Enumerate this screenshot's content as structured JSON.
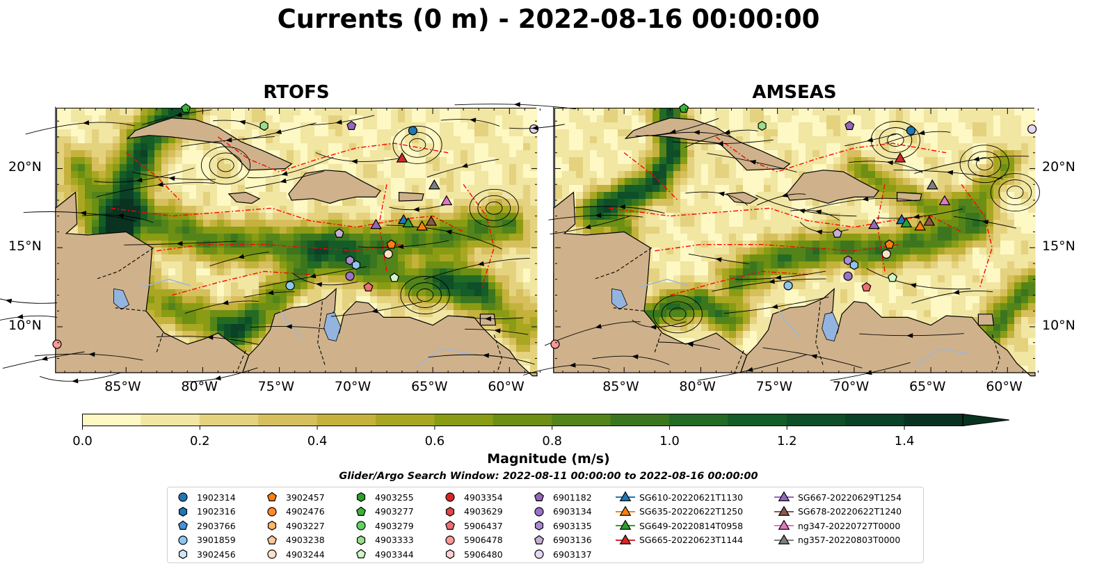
{
  "title": "Currents (0 m) - 2022-08-16 00:00:00",
  "panels": [
    {
      "name": "RTOFS"
    },
    {
      "name": "AMSEAS"
    }
  ],
  "map": {
    "lon_range": [
      -89.5,
      -58.2
    ],
    "lat_range": [
      7.1,
      23.8
    ],
    "lon_ticks": [
      "85°W",
      "80°W",
      "75°W",
      "70°W",
      "65°W",
      "60°W"
    ],
    "lat_ticks": [
      "20°N",
      "15°N",
      "10°N"
    ],
    "colors": {
      "land": "#cfb28b",
      "lake": "#93b4df",
      "eez": "#ff0000",
      "streamline": "#000000"
    }
  },
  "colorbar": {
    "label": "Magnitude (m/s)",
    "ticks": [
      "0.0",
      "0.2",
      "0.4",
      "0.6",
      "0.8",
      "1.0",
      "1.2",
      "1.4"
    ],
    "colors": [
      "#fdf8c4",
      "#f1e6a2",
      "#e4d27f",
      "#d7bf5e",
      "#c4b23d",
      "#a9a722",
      "#8a9c14",
      "#6c8f14",
      "#52841a",
      "#3b761e",
      "#236a24",
      "#145c28",
      "#0e4e28",
      "#0b4126",
      "#093320"
    ],
    "extend": "max"
  },
  "search_window": "Glider/Argo Search Window: 2022-08-11 00:00:00 to 2022-08-16 00:00:00",
  "legend": [
    {
      "label": "1902314",
      "marker": "circle",
      "color": "#1f77b4"
    },
    {
      "label": "1902316",
      "marker": "hexagon",
      "color": "#1f77b4"
    },
    {
      "label": "2903766",
      "marker": "pentagon",
      "color": "#4a90d9"
    },
    {
      "label": "3901859",
      "marker": "circle",
      "color": "#8ec6ee"
    },
    {
      "label": "3902456",
      "marker": "hexagon",
      "color": "#cfe6f7"
    },
    {
      "label": "3902457",
      "marker": "pentagon",
      "color": "#ff7f0e"
    },
    {
      "label": "4902476",
      "marker": "circle",
      "color": "#ff8a2a"
    },
    {
      "label": "4903227",
      "marker": "hexagon",
      "color": "#ffb66b"
    },
    {
      "label": "4903238",
      "marker": "pentagon",
      "color": "#ffc99a"
    },
    {
      "label": "4903244",
      "marker": "circle",
      "color": "#ffe2c6"
    },
    {
      "label": "4903255",
      "marker": "hexagon",
      "color": "#2ca02c"
    },
    {
      "label": "4903277",
      "marker": "pentagon",
      "color": "#3bb33b"
    },
    {
      "label": "4903279",
      "marker": "circle",
      "color": "#5fd35f"
    },
    {
      "label": "4903333",
      "marker": "hexagon",
      "color": "#98df8a"
    },
    {
      "label": "4903344",
      "marker": "pentagon",
      "color": "#d0f5c8"
    },
    {
      "label": "4903354",
      "marker": "circle",
      "color": "#d62728"
    },
    {
      "label": "4903629",
      "marker": "hexagon",
      "color": "#e0474a"
    },
    {
      "label": "5906437",
      "marker": "pentagon",
      "color": "#ee6e73"
    },
    {
      "label": "5906478",
      "marker": "circle",
      "color": "#ff9896"
    },
    {
      "label": "5906480",
      "marker": "hexagon",
      "color": "#ffd0cf"
    },
    {
      "label": "6901182",
      "marker": "pentagon",
      "color": "#9467bd"
    },
    {
      "label": "6903134",
      "marker": "circle",
      "color": "#9a72c6"
    },
    {
      "label": "6903135",
      "marker": "hexagon",
      "color": "#a98ad3"
    },
    {
      "label": "6903136",
      "marker": "pentagon",
      "color": "#c5b0d5"
    },
    {
      "label": "6903137",
      "marker": "circle",
      "color": "#e5d6f5"
    },
    {
      "label": "SG610-20220621T1130",
      "marker": "triangle",
      "color": "#1f77b4"
    },
    {
      "label": "SG635-20220622T1250",
      "marker": "triangle",
      "color": "#ff7f0e"
    },
    {
      "label": "SG649-20220814T0958",
      "marker": "triangle",
      "color": "#2ca02c"
    },
    {
      "label": "SG665-20220623T1144",
      "marker": "triangle",
      "color": "#d62728"
    },
    {
      "label": "SG667-20220629T1254",
      "marker": "triangle",
      "color": "#9467bd"
    },
    {
      "label": "SG678-20220622T1240",
      "marker": "triangle",
      "color": "#8c564b"
    },
    {
      "label": "ng347-20220727T0000",
      "marker": "triangle",
      "color": "#e377c2"
    },
    {
      "label": "ng357-20220803T0000",
      "marker": "triangle",
      "color": "#7f7f7f"
    }
  ],
  "observations": [
    {
      "lon": -66.3,
      "lat": 22.4,
      "marker": "circle",
      "color": "#1f77b4"
    },
    {
      "lon": -70.3,
      "lat": 22.7,
      "marker": "pentagon",
      "color": "#9467bd"
    },
    {
      "lon": -76.0,
      "lat": 22.7,
      "marker": "hexagon",
      "color": "#98df8a"
    },
    {
      "lon": -81.1,
      "lat": 23.8,
      "marker": "pentagon",
      "color": "#3bb33b"
    },
    {
      "lon": -58.4,
      "lat": 22.5,
      "marker": "circle",
      "color": "#e5d6f5"
    },
    {
      "lon": -71.1,
      "lat": 15.9,
      "marker": "pentagon",
      "color": "#c5b0d5"
    },
    {
      "lon": -67.7,
      "lat": 15.2,
      "marker": "pentagon",
      "color": "#ff7f0e"
    },
    {
      "lon": -67.9,
      "lat": 14.6,
      "marker": "circle",
      "color": "#ffe2c6"
    },
    {
      "lon": -70.4,
      "lat": 14.2,
      "marker": "hexagon",
      "color": "#a98ad3"
    },
    {
      "lon": -70.0,
      "lat": 13.9,
      "marker": "hexagon",
      "color": "#8ec6ee"
    },
    {
      "lon": -70.4,
      "lat": 13.2,
      "marker": "circle",
      "color": "#9a72c6"
    },
    {
      "lon": -69.2,
      "lat": 12.5,
      "marker": "pentagon",
      "color": "#ee6e73"
    },
    {
      "lon": -67.5,
      "lat": 13.1,
      "marker": "pentagon",
      "color": "#d0f5c8"
    },
    {
      "lon": -74.3,
      "lat": 12.6,
      "marker": "circle",
      "color": "#8ec6ee"
    },
    {
      "lon": -89.5,
      "lat": 8.9,
      "marker": "circle",
      "color": "#ff9896"
    }
  ],
  "gliders": [
    {
      "lon": -67.0,
      "lat": 20.6,
      "color": "#d62728"
    },
    {
      "lon": -64.9,
      "lat": 18.9,
      "color": "#7f7f7f"
    },
    {
      "lon": -64.1,
      "lat": 17.9,
      "color": "#e377c2"
    },
    {
      "lon": -68.7,
      "lat": 16.4,
      "color": "#9467bd"
    },
    {
      "lon": -66.9,
      "lat": 16.7,
      "color": "#1f77b4"
    },
    {
      "lon": -66.6,
      "lat": 16.5,
      "color": "#2ca02c"
    },
    {
      "lon": -65.7,
      "lat": 16.3,
      "color": "#ff7f0e"
    },
    {
      "lon": -65.1,
      "lat": 16.6,
      "color": "#8c564b"
    }
  ]
}
